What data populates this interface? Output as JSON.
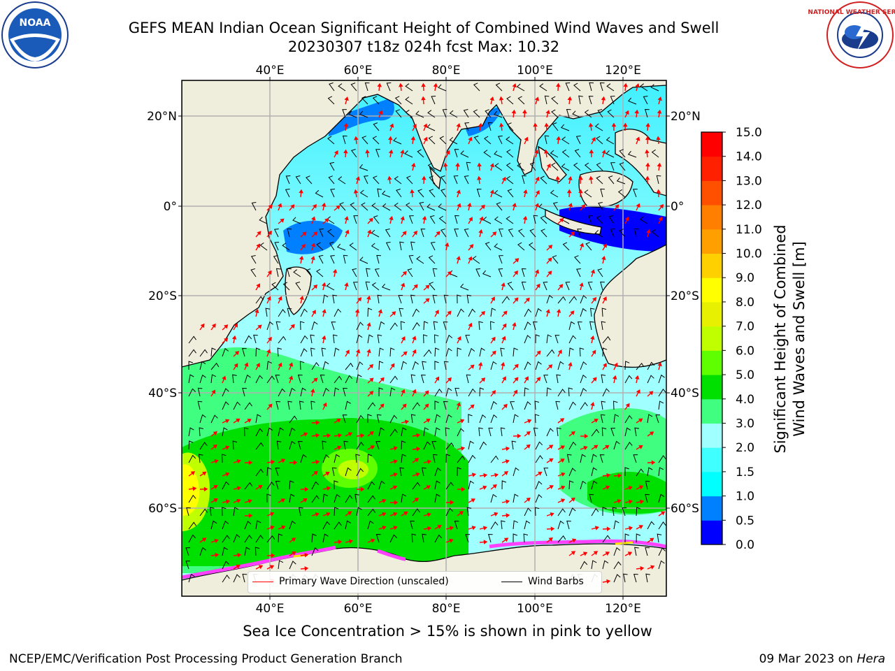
{
  "title_line1": "GEFS MEAN Indian Ocean Significant Height of Combined Wind Waves and Swell",
  "title_line2": "20230307 t18z 024h fcst   Max: 10.32",
  "lon_ticks": [
    "40°E",
    "60°E",
    "80°E",
    "100°E",
    "120°E"
  ],
  "lat_ticks": [
    "20°N",
    "0°",
    "20°S",
    "40°S",
    "60°S"
  ],
  "colorbar": {
    "label_line1": "Significant Height of Combined",
    "label_line2": "Wind Waves and Swell [m]",
    "ticks": [
      "0.0",
      "0.5",
      "1.0",
      "1.5",
      "2.0",
      "3.0",
      "4.0",
      "5.0",
      "6.0",
      "7.0",
      "8.0",
      "9.0",
      "10.0",
      "11.0",
      "12.0",
      "13.0",
      "14.0",
      "15.0"
    ],
    "colors": [
      "#0000ff",
      "#0080ff",
      "#00ffff",
      "#40ffff",
      "#a0ffff",
      "#40ff80",
      "#00e000",
      "#60ff00",
      "#c0ff00",
      "#e6f000",
      "#ffff00",
      "#ffd000",
      "#ffa000",
      "#ff8000",
      "#ff5000",
      "#ff2000",
      "#ff0000"
    ]
  },
  "legend": {
    "wave_label": "Primary Wave Direction (unscaled)",
    "wind_label": "Wind Barbs",
    "wave_color": "#ff0000",
    "wind_color": "#000000"
  },
  "caption": "Sea Ice Concentration > 15% is shown in pink to yellow",
  "footer_left": "NCEP/EMC/Verification Post Processing Product Generation Branch",
  "footer_date": "09 Mar 2023 on ",
  "footer_machine": "Hera",
  "logos": {
    "noaa_text": "NOAA",
    "nws_text": "NATIONAL WEATHER SERVICE"
  },
  "colors": {
    "land": "#efeddc",
    "grid": "#b0b0b0"
  }
}
